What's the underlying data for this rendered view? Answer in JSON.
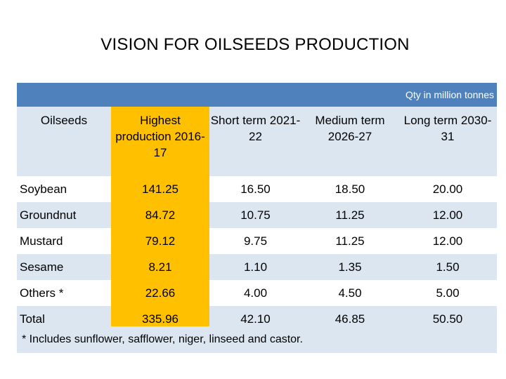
{
  "title": "VISION FOR OILSEEDS PRODUCTION",
  "units": "Qty in million tonnes",
  "columns": [
    "Oilseeds",
    "Highest production 2016-17",
    "Short term 2021-22",
    "Medium term 2026-27",
    "Long term 2030-31"
  ],
  "rows": [
    {
      "name": "Soybean",
      "values": [
        "141.25",
        "16.50",
        "18.50",
        "20.00"
      ]
    },
    {
      "name": "Groundnut",
      "values": [
        "84.72",
        "10.75",
        "11.25",
        "12.00"
      ]
    },
    {
      "name": "Mustard",
      "values": [
        "79.12",
        "9.75",
        "11.25",
        "12.00"
      ]
    },
    {
      "name": "Sesame",
      "values": [
        "8.21",
        "1.10",
        "1.35",
        "1.50"
      ]
    },
    {
      "name": "Others *",
      "values": [
        "22.66",
        "4.00",
        "4.50",
        "5.00"
      ]
    },
    {
      "name": "Total",
      "values": [
        "335.96",
        "42.10",
        "46.85",
        "50.50"
      ]
    }
  ],
  "footnote": "* Includes sunflower, safflower, niger, linseed and castor.",
  "colors": {
    "header_bar": "#4f81bd",
    "highlight": "#ffc000",
    "band": "#dce6f1"
  }
}
